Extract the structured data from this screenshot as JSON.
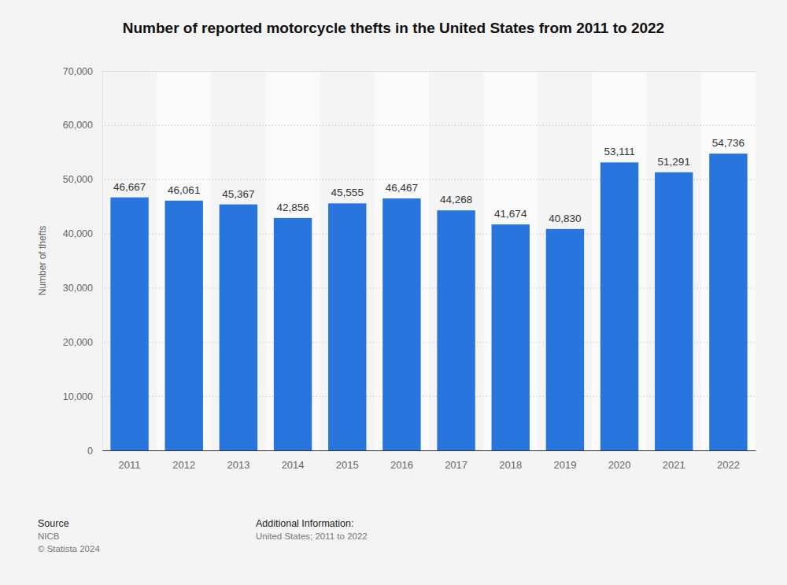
{
  "chart_data": {
    "type": "bar",
    "title": "Number of reported motorcycle thefts in the United States from 2011 to 2022",
    "y_label": "Number of thefts",
    "categories": [
      "2011",
      "2012",
      "2013",
      "2014",
      "2015",
      "2016",
      "2017",
      "2018",
      "2019",
      "2020",
      "2021",
      "2022"
    ],
    "values": [
      46667,
      46061,
      45367,
      42856,
      45555,
      46467,
      44268,
      41674,
      40830,
      53111,
      51291,
      54736
    ],
    "value_labels": [
      "46,667",
      "46,061",
      "45,367",
      "42,856",
      "45,555",
      "46,467",
      "44,268",
      "41,674",
      "40,830",
      "53,111",
      "51,291",
      "54,736"
    ],
    "color": "#2876dd",
    "ylim": [
      0,
      70000
    ],
    "yticks": [
      0,
      {
        "value": 10000,
        "label": "10,000"
      },
      {
        "value": 20000,
        "label": "20,000"
      },
      {
        "value": 30000,
        "label": "30,000"
      },
      {
        "value": 40000,
        "label": "40,000"
      },
      {
        "value": 50000,
        "label": "50,000"
      },
      {
        "value": 60000,
        "label": "60,000"
      },
      {
        "value": 70000,
        "label": "70,000"
      }
    ],
    "grid": true,
    "data_labels": true,
    "annotations": [
      "Source",
      "NICB",
      "© Statista 2024",
      "Additional Information:",
      "United States; 2011 to 2022"
    ]
  }
}
